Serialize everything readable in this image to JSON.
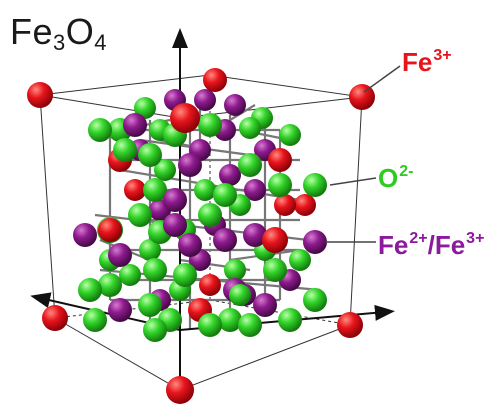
{
  "figure": {
    "formula": {
      "base1": "Fe",
      "sub1": "3",
      "base2": "O",
      "sub2": "4"
    },
    "labels": [
      {
        "id": "fe3",
        "text": "Fe",
        "sup": "3+",
        "color": "#e8141c"
      },
      {
        "id": "o2",
        "text": "O",
        "sup": "2-",
        "color": "#2ecc1f"
      },
      {
        "id": "mixed",
        "text1": "Fe",
        "sup1": "2+",
        "text2": "/Fe",
        "sup2": "3+",
        "color": "#8b1a9c"
      }
    ],
    "atom_colors": {
      "fe3_red": "#e8141c",
      "o2_green": "#33d42a",
      "fe_mixed_purple": "#8e1b8e"
    }
  }
}
